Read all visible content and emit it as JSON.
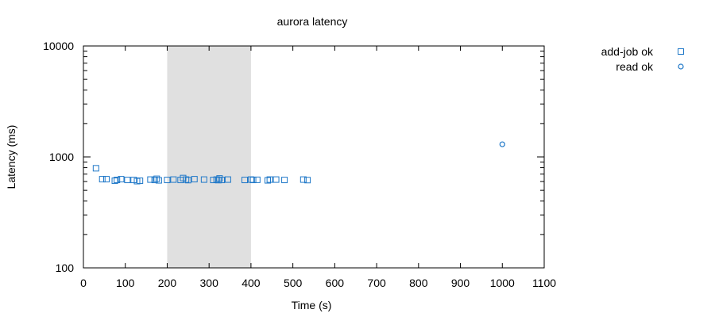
{
  "chart_data": {
    "type": "scatter",
    "title": "aurora latency",
    "xlabel": "Time (s)",
    "ylabel": "Latency (ms)",
    "xlim": [
      0,
      1100
    ],
    "ylim": [
      100,
      10000
    ],
    "yscale": "log",
    "grid": false,
    "legend_position": "top-right outside",
    "x_ticks": [
      "0",
      "100",
      "200",
      "300",
      "400",
      "500",
      "600",
      "700",
      "800",
      "900",
      "1000",
      "1100"
    ],
    "y_ticks": [
      "100",
      "1000",
      "10000"
    ],
    "highlight_band": {
      "x": [
        200,
        400
      ],
      "color": "#e0e0e0"
    },
    "series": [
      {
        "name": "add-job ok",
        "marker": "square",
        "color": "#1f78c8",
        "points": [
          [
            30,
            790
          ],
          [
            45,
            630
          ],
          [
            55,
            630
          ],
          [
            75,
            610
          ],
          [
            80,
            620
          ],
          [
            90,
            630
          ],
          [
            105,
            620
          ],
          [
            120,
            620
          ],
          [
            128,
            605
          ],
          [
            135,
            610
          ],
          [
            160,
            625
          ],
          [
            170,
            620
          ],
          [
            175,
            635
          ],
          [
            180,
            615
          ],
          [
            200,
            620
          ],
          [
            215,
            625
          ],
          [
            232,
            620
          ],
          [
            238,
            645
          ],
          [
            245,
            625
          ],
          [
            250,
            618
          ],
          [
            265,
            630
          ],
          [
            288,
            625
          ],
          [
            310,
            620
          ],
          [
            318,
            625
          ],
          [
            322,
            618
          ],
          [
            325,
            640
          ],
          [
            330,
            620
          ],
          [
            345,
            625
          ],
          [
            385,
            620
          ],
          [
            400,
            625
          ],
          [
            405,
            620
          ],
          [
            415,
            622
          ],
          [
            440,
            615
          ],
          [
            445,
            625
          ],
          [
            460,
            625
          ],
          [
            480,
            620
          ],
          [
            525,
            625
          ],
          [
            535,
            618
          ]
        ]
      },
      {
        "name": "read ok",
        "marker": "circle",
        "color": "#1f78c8",
        "points": [
          [
            1000,
            1300
          ]
        ]
      }
    ]
  }
}
